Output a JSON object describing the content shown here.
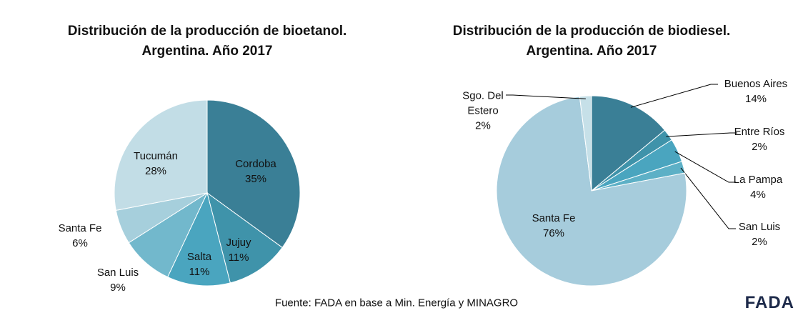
{
  "chart_data": [
    {
      "type": "pie",
      "title": "Distribución de la producción de bioetanol.\nArgentina. Año 2017",
      "categories": [
        "Cordoba",
        "Jujuy",
        "Salta",
        "San Luis",
        "Santa Fe",
        "Tucumán"
      ],
      "values": [
        35,
        11,
        11,
        9,
        6,
        28
      ],
      "value_labels": [
        "35%",
        "11%",
        "11%",
        "9%",
        "6%",
        "28%"
      ],
      "colors": [
        "#3a7f96",
        "#3f93aa",
        "#4aa5bf",
        "#72b8cc",
        "#a6cfdc",
        "#c2dde6"
      ]
    },
    {
      "type": "pie",
      "title": "Distribución de la producción de biodiesel.\nArgentina. Año 2017",
      "categories": [
        "Buenos Aires",
        "Entre Ríos",
        "La Pampa",
        "San Luis",
        "Santa Fe",
        "Sgo. Del\nEstero"
      ],
      "values": [
        14,
        2,
        4,
        2,
        76,
        2
      ],
      "value_labels": [
        "14%",
        "2%",
        "4%",
        "2%",
        "76%",
        "2%"
      ],
      "colors": [
        "#3a7f96",
        "#3f93aa",
        "#4aa5bf",
        "#5db0c6",
        "#a6ccdc",
        "#c6e0e8"
      ]
    }
  ],
  "source": "Fuente: FADA en base a Min. Energía y MINAGRO",
  "logo": "FADA"
}
